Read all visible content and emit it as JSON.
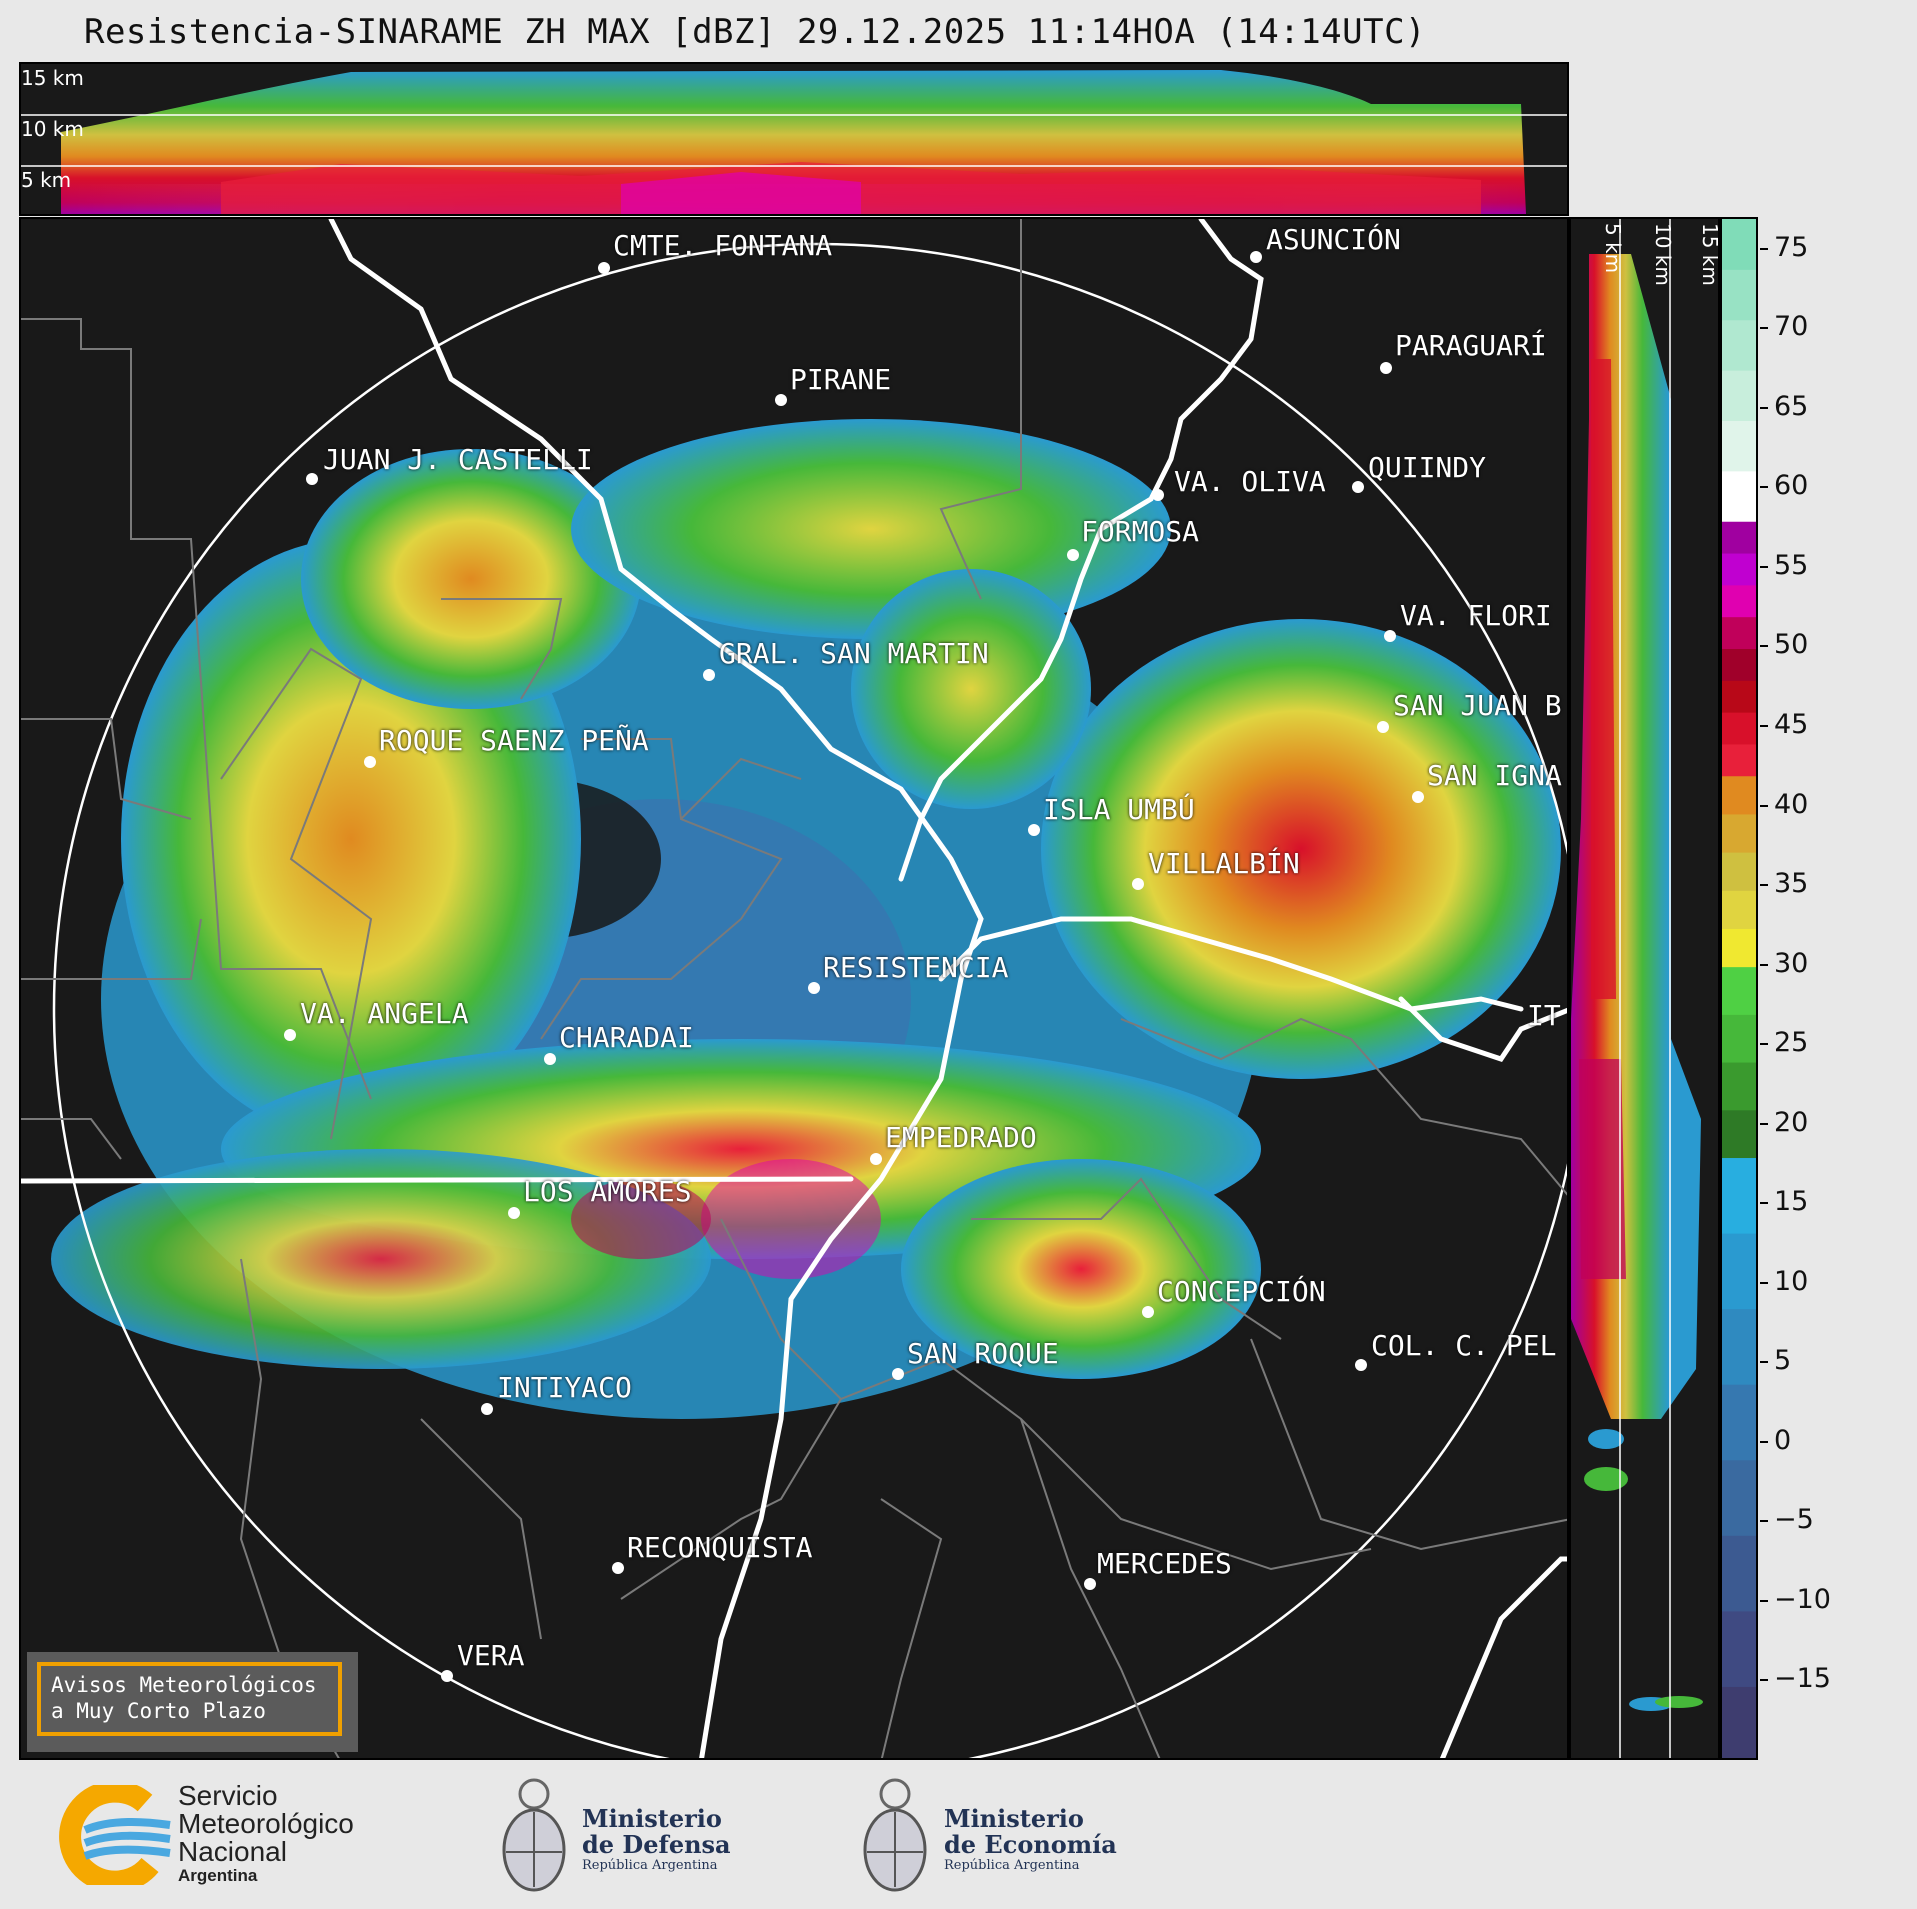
{
  "title": "Resistencia-SINARAME ZH MAX [dBZ] 29.12.2025 11:14HOA (14:14UTC)",
  "top_panel": {
    "labels": [
      "15 km",
      "10 km",
      "5 km"
    ]
  },
  "side_panel": {
    "labels": [
      "5 km",
      "10 km",
      "15 km"
    ]
  },
  "colorbar": {
    "unit": "dBZ",
    "ticks": [
      "75",
      "70",
      "65",
      "60",
      "55",
      "50",
      "45",
      "40",
      "35",
      "30",
      "25",
      "20",
      "15",
      "10",
      "5",
      "0",
      "−5",
      "−10",
      "−15"
    ],
    "colors": {
      "blues": [
        "#3e3d6f",
        "#3f4a82",
        "#3c5a91",
        "#3a6aa0",
        "#3678b0",
        "#2f8ac0",
        "#2a9ad0",
        "#28aee0"
      ],
      "greens": [
        "#2e7a26",
        "#3a9a2e",
        "#46b83a",
        "#4fd044"
      ],
      "yellows": [
        "#f0e830",
        "#e0d440",
        "#cfc040",
        "#d8a830",
        "#e08a20"
      ],
      "reds": [
        "#e8203a",
        "#d8102a",
        "#b80818",
        "#a0002a",
        "#c0005a",
        "#e000b0",
        "#c000d0",
        "#a000a0"
      ],
      "whites": [
        "#ffffff",
        "#e0f4ea",
        "#c8eedc",
        "#b0e8d0",
        "#98e2c4",
        "#80dcb8"
      ]
    }
  },
  "cities": [
    {
      "name": "CMTE. FONTANA"
    },
    {
      "name": "ASUNCIÓN"
    },
    {
      "name": "PARAGUARÍ"
    },
    {
      "name": "PIRANE"
    },
    {
      "name": "JUAN J. CASTELLI"
    },
    {
      "name": "VA. OLIVA"
    },
    {
      "name": "QUIINDY"
    },
    {
      "name": "FORMOSA"
    },
    {
      "name": "VA. FLORI"
    },
    {
      "name": "GRAL. SAN MARTIN"
    },
    {
      "name": "SAN JUAN B"
    },
    {
      "name": "ROQUE SAENZ PEÑA"
    },
    {
      "name": "SAN IGNA"
    },
    {
      "name": "ISLA UMBÚ"
    },
    {
      "name": "VILLALBÍN"
    },
    {
      "name": "RESISTENCIA"
    },
    {
      "name": "VA. ANGELA"
    },
    {
      "name": "CHARADAI"
    },
    {
      "name": "IT"
    },
    {
      "name": "EMPEDRADO"
    },
    {
      "name": "LOS AMORES"
    },
    {
      "name": "CONCEPCIÓN"
    },
    {
      "name": "COL. C. PEL"
    },
    {
      "name": "SAN ROQUE"
    },
    {
      "name": "INTIYACO"
    },
    {
      "name": "RECONQUISTA"
    },
    {
      "name": "MERCEDES"
    },
    {
      "name": "VERA"
    }
  ],
  "avisos": {
    "line1": "Avisos Meteorológicos",
    "line2": "a Muy Corto Plazo"
  },
  "footer": {
    "smn": {
      "line1": "Servicio",
      "line2": "Meteorológico",
      "line3": "Nacional",
      "line4": "Argentina"
    },
    "defensa": {
      "line1": "Ministerio",
      "line2": "de Defensa",
      "line3": "República Argentina"
    },
    "economia": {
      "line1": "Ministerio",
      "line2": "de Economía",
      "line3": "República Argentina"
    }
  }
}
